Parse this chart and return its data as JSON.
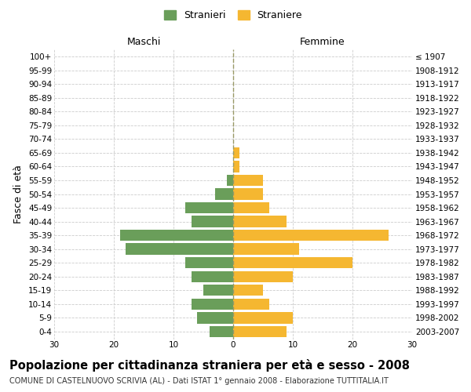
{
  "age_groups": [
    "0-4",
    "5-9",
    "10-14",
    "15-19",
    "20-24",
    "25-29",
    "30-34",
    "35-39",
    "40-44",
    "45-49",
    "50-54",
    "55-59",
    "60-64",
    "65-69",
    "70-74",
    "75-79",
    "80-84",
    "85-89",
    "90-94",
    "95-99",
    "100+"
  ],
  "birth_years": [
    "2003-2007",
    "1998-2002",
    "1993-1997",
    "1988-1992",
    "1983-1987",
    "1978-1982",
    "1973-1977",
    "1968-1972",
    "1963-1967",
    "1958-1962",
    "1953-1957",
    "1948-1952",
    "1943-1947",
    "1938-1942",
    "1933-1937",
    "1928-1932",
    "1923-1927",
    "1918-1922",
    "1913-1917",
    "1908-1912",
    "≤ 1907"
  ],
  "males": [
    4,
    6,
    7,
    5,
    7,
    8,
    18,
    19,
    7,
    8,
    3,
    1,
    0,
    0,
    0,
    0,
    0,
    0,
    0,
    0,
    0
  ],
  "females": [
    9,
    10,
    6,
    5,
    10,
    20,
    11,
    26,
    9,
    6,
    5,
    5,
    1,
    1,
    0,
    0,
    0,
    0,
    0,
    0,
    0
  ],
  "male_color": "#6a9e5a",
  "female_color": "#f5b731",
  "bar_height": 0.82,
  "xlim": 30,
  "title": "Popolazione per cittadinanza straniera per età e sesso - 2008",
  "subtitle": "COMUNE DI CASTELNUOVO SCRIVIA (AL) - Dati ISTAT 1° gennaio 2008 - Elaborazione TUTTITALIA.IT",
  "header_left": "Maschi",
  "header_right": "Femmine",
  "ylabel_left": "Fasce di età",
  "legend_stranieri": "Stranieri",
  "legend_straniere": "Straniere",
  "grid_color": "#cccccc",
  "center_line_color": "#999966",
  "title_fontsize": 10.5,
  "subtitle_fontsize": 7.0,
  "tick_fontsize": 7.5,
  "label_fontsize": 9,
  "header_fontsize": 9
}
